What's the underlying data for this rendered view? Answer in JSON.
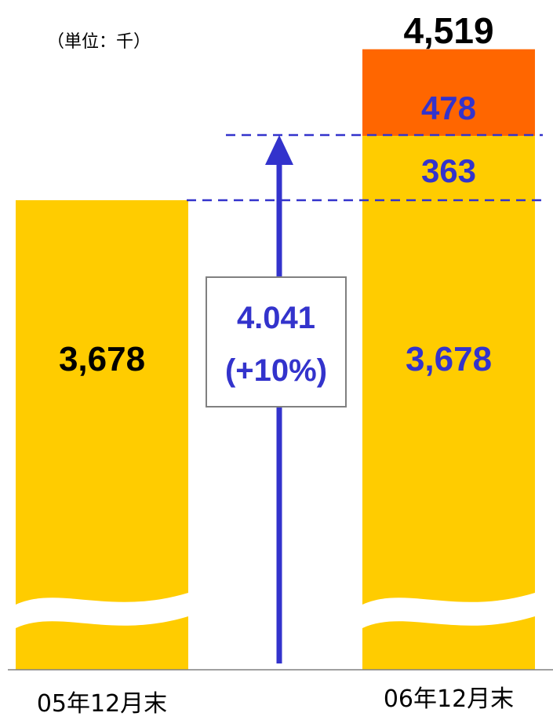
{
  "chart_data": {
    "type": "bar",
    "unit_label": "（単位：千）",
    "categories": [
      "05年12月末",
      "06年12月末"
    ],
    "series": [
      {
        "values": [
          3678,
          3678
        ]
      },
      {
        "values": [
          0,
          363
        ]
      },
      {
        "values": [
          0,
          478
        ]
      }
    ],
    "totals": [
      "",
      "4,519"
    ],
    "segment_labels": [
      [
        "3,678"
      ],
      [
        "3,678",
        "363",
        "478"
      ]
    ],
    "annotation": {
      "line1": "4.041",
      "line2": "(+10%)"
    },
    "axis_break": true,
    "colors": {
      "base": "#FFCC00",
      "growth": "#FFCC00",
      "new": "#FF6600",
      "accent": "#3333CC",
      "text": "#000000",
      "break": "#FFFFFF"
    }
  }
}
